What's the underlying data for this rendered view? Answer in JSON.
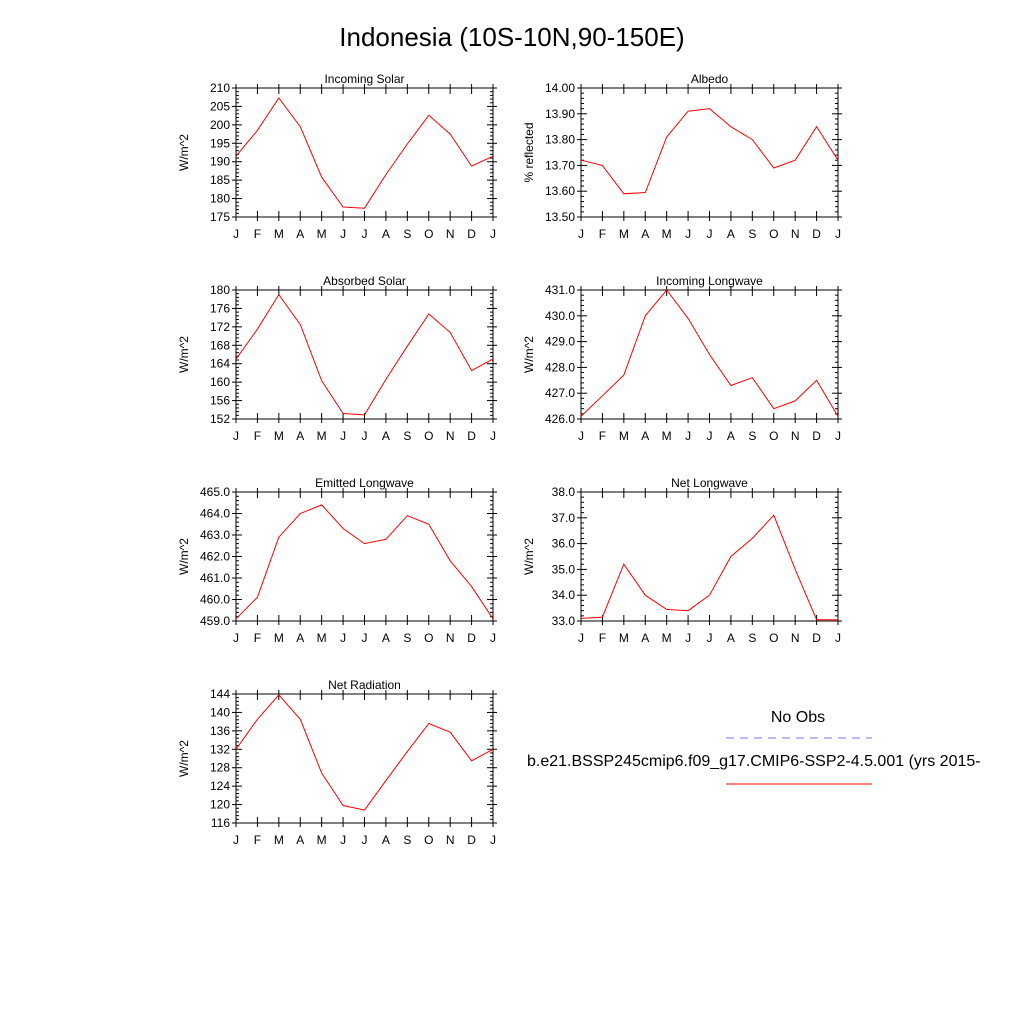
{
  "title": "Indonesia (10S-10N,90-150E)",
  "months": [
    "J",
    "F",
    "M",
    "A",
    "M",
    "J",
    "J",
    "A",
    "S",
    "O",
    "N",
    "D",
    "J"
  ],
  "line_color": "#ff0000",
  "obs_color": "#7777ff",
  "legend": {
    "obs_label": "No Obs",
    "model_label": "b.e21.BSSP245cmip6.f09_g17.CMIP6-SSP2-4.5.001 (yrs 2015-"
  },
  "chart_data": [
    {
      "type": "line",
      "title": "Incoming Solar",
      "ylabel": "W/m^2",
      "ylim": [
        175,
        210
      ],
      "yticks": [
        "175",
        "180",
        "185",
        "190",
        "195",
        "200",
        "205",
        "210"
      ],
      "values": [
        191.5,
        198.5,
        207.3,
        199.5,
        185.8,
        177.7,
        177.4,
        186.5,
        194.8,
        202.6,
        197.5,
        188.8,
        191.5
      ]
    },
    {
      "type": "line",
      "title": "Albedo",
      "ylabel": "% reflected",
      "ylim": [
        13.5,
        14.0
      ],
      "yticks": [
        "13.50",
        "13.60",
        "13.70",
        "13.80",
        "13.90",
        "14.00"
      ],
      "values": [
        13.72,
        13.7,
        13.59,
        13.595,
        13.81,
        13.91,
        13.92,
        13.85,
        13.8,
        13.69,
        13.72,
        13.85,
        13.72
      ]
    },
    {
      "type": "line",
      "title": "Absorbed Solar",
      "ylabel": "W/m^2",
      "ylim": [
        152,
        180
      ],
      "yticks": [
        "152",
        "156",
        "160",
        "164",
        "168",
        "172",
        "176",
        "180"
      ],
      "values": [
        165.0,
        171.5,
        179.0,
        172.5,
        160.3,
        153.2,
        152.9,
        160.6,
        167.8,
        174.8,
        170.8,
        162.5,
        165.0
      ]
    },
    {
      "type": "line",
      "title": "Incoming Longwave",
      "ylabel": "W/m^2",
      "ylim": [
        426,
        431
      ],
      "yticks": [
        "426.0",
        "427.0",
        "428.0",
        "429.0",
        "430.0",
        "431.0"
      ],
      "values": [
        426.1,
        426.9,
        427.7,
        430.0,
        431.0,
        429.9,
        428.5,
        427.3,
        427.6,
        426.4,
        426.7,
        427.5,
        426.1
      ]
    },
    {
      "type": "line",
      "title": "Emitted Longwave",
      "ylabel": "W/m^2",
      "ylim": [
        459,
        465
      ],
      "yticks": [
        "459.0",
        "460.0",
        "461.0",
        "462.0",
        "463.0",
        "464.0",
        "465.0"
      ],
      "values": [
        459.1,
        460.1,
        462.9,
        464.0,
        464.4,
        463.3,
        462.6,
        462.8,
        463.9,
        463.5,
        461.8,
        460.6,
        459.1
      ]
    },
    {
      "type": "line",
      "title": "Net Longwave",
      "ylabel": "W/m^2",
      "ylim": [
        33,
        38
      ],
      "yticks": [
        "33.0",
        "34.0",
        "35.0",
        "36.0",
        "37.0",
        "38.0"
      ],
      "values": [
        33.1,
        33.15,
        35.2,
        34.0,
        33.45,
        33.4,
        34.0,
        35.5,
        36.2,
        37.1,
        35.0,
        33.05,
        33.05
      ]
    },
    {
      "type": "line",
      "title": "Net Radiation",
      "ylabel": "W/m^2",
      "ylim": [
        116,
        144
      ],
      "yticks": [
        "116",
        "120",
        "124",
        "128",
        "132",
        "136",
        "140",
        "144"
      ],
      "values": [
        132.0,
        138.5,
        143.8,
        138.5,
        126.8,
        119.8,
        118.8,
        125.2,
        131.5,
        137.6,
        135.7,
        129.5,
        132.0
      ]
    }
  ]
}
